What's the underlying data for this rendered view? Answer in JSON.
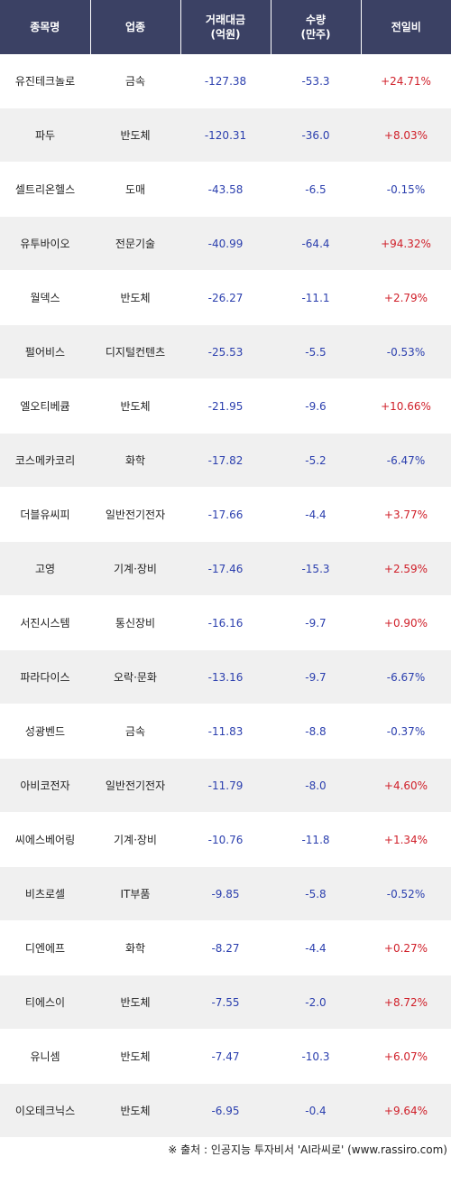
{
  "headers": [
    "종목명",
    "업종",
    "거래대금\n(억원)",
    "수량\n(만주)",
    "전일비"
  ],
  "header_lines": {
    "name": "종목명",
    "sector": "업종",
    "amount_1": "거래대금",
    "amount_2": "(억원)",
    "volume_1": "수량",
    "volume_2": "(만주)",
    "change": "전일비"
  },
  "rows": [
    {
      "name": "유진테크놀로",
      "sector": "금속",
      "amount": "-127.38",
      "volume": "-53.3",
      "change": "+24.71%"
    },
    {
      "name": "파두",
      "sector": "반도체",
      "amount": "-120.31",
      "volume": "-36.0",
      "change": "+8.03%"
    },
    {
      "name": "셀트리온헬스",
      "sector": "도매",
      "amount": "-43.58",
      "volume": "-6.5",
      "change": "-0.15%"
    },
    {
      "name": "유투바이오",
      "sector": "전문기술",
      "amount": "-40.99",
      "volume": "-64.4",
      "change": "+94.32%"
    },
    {
      "name": "월덱스",
      "sector": "반도체",
      "amount": "-26.27",
      "volume": "-11.1",
      "change": "+2.79%"
    },
    {
      "name": "펄어비스",
      "sector": "디지털컨텐츠",
      "amount": "-25.53",
      "volume": "-5.5",
      "change": "-0.53%"
    },
    {
      "name": "엘오티베큠",
      "sector": "반도체",
      "amount": "-21.95",
      "volume": "-9.6",
      "change": "+10.66%"
    },
    {
      "name": "코스메카코리",
      "sector": "화학",
      "amount": "-17.82",
      "volume": "-5.2",
      "change": "-6.47%"
    },
    {
      "name": "더블유씨피",
      "sector": "일반전기전자",
      "amount": "-17.66",
      "volume": "-4.4",
      "change": "+3.77%"
    },
    {
      "name": "고영",
      "sector": "기계·장비",
      "amount": "-17.46",
      "volume": "-15.3",
      "change": "+2.59%"
    },
    {
      "name": "서진시스템",
      "sector": "통신장비",
      "amount": "-16.16",
      "volume": "-9.7",
      "change": "+0.90%"
    },
    {
      "name": "파라다이스",
      "sector": "오락·문화",
      "amount": "-13.16",
      "volume": "-9.7",
      "change": "-6.67%"
    },
    {
      "name": "성광벤드",
      "sector": "금속",
      "amount": "-11.83",
      "volume": "-8.8",
      "change": "-0.37%"
    },
    {
      "name": "아비코전자",
      "sector": "일반전기전자",
      "amount": "-11.79",
      "volume": "-8.0",
      "change": "+4.60%"
    },
    {
      "name": "씨에스베어링",
      "sector": "기계·장비",
      "amount": "-10.76",
      "volume": "-11.8",
      "change": "+1.34%"
    },
    {
      "name": "비츠로셀",
      "sector": "IT부품",
      "amount": "-9.85",
      "volume": "-5.8",
      "change": "-0.52%"
    },
    {
      "name": "디엔에프",
      "sector": "화학",
      "amount": "-8.27",
      "volume": "-4.4",
      "change": "+0.27%"
    },
    {
      "name": "티에스이",
      "sector": "반도체",
      "amount": "-7.55",
      "volume": "-2.0",
      "change": "+8.72%"
    },
    {
      "name": "유니셈",
      "sector": "반도체",
      "amount": "-7.47",
      "volume": "-10.3",
      "change": "+6.07%"
    },
    {
      "name": "이오테크닉스",
      "sector": "반도체",
      "amount": "-6.95",
      "volume": "-0.4",
      "change": "+9.64%"
    }
  ],
  "source": "※ 출처 : 인공지능 투자비서 'AI라씨로' (www.rassiro.com)",
  "colors": {
    "header_bg": "#3b4164",
    "up": "#d0202a",
    "down": "#2b3fae",
    "alt_row": "#f0f0f0"
  }
}
